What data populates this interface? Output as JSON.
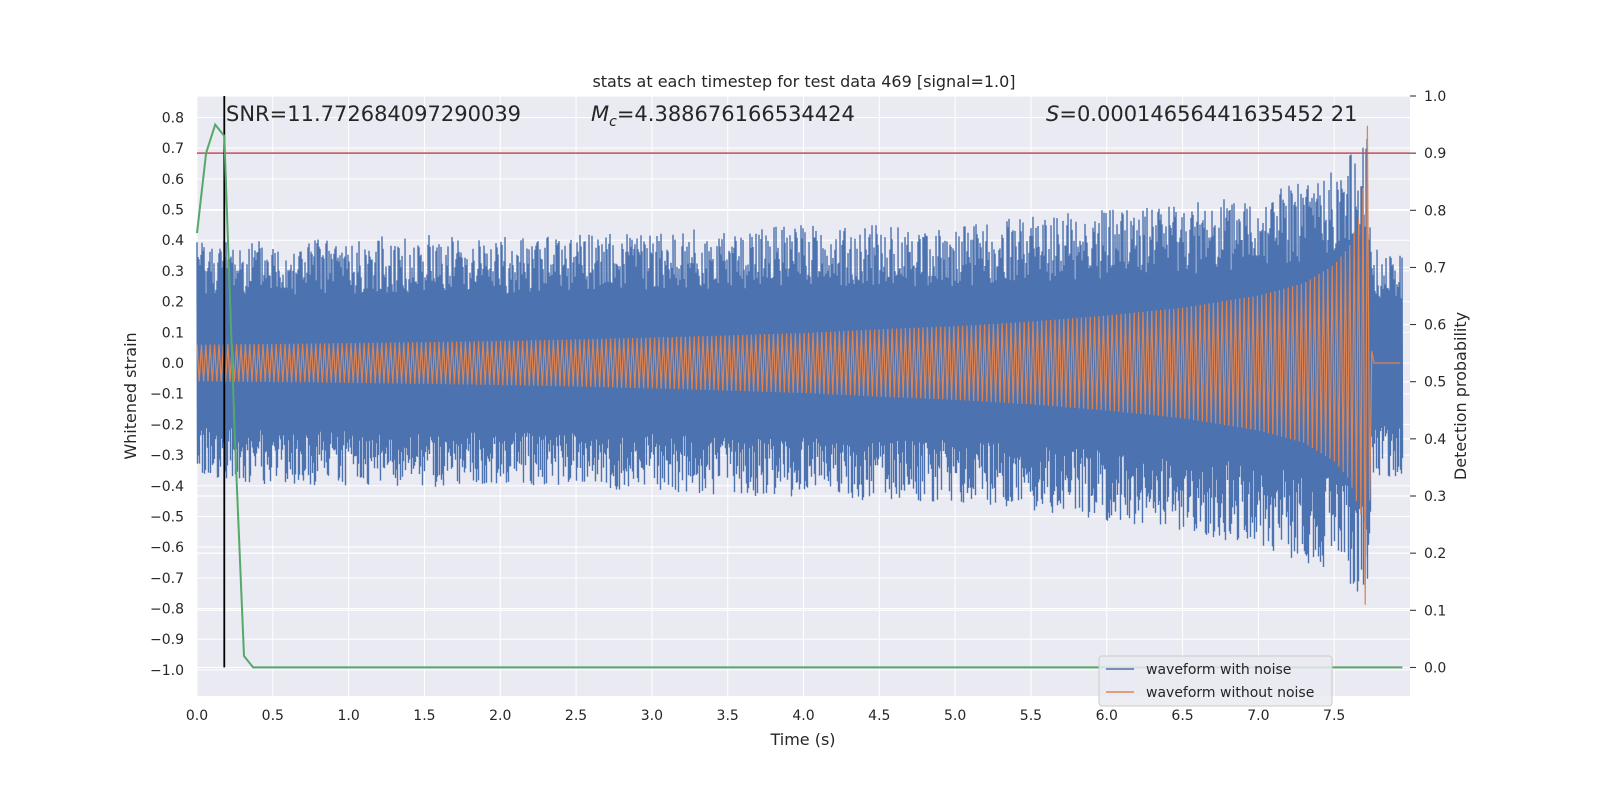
{
  "chart_data": {
    "type": "line",
    "title": "stats at each timestep for test data 469 [signal=1.0]",
    "xlabel": "Time (s)",
    "ylabel": "Whitened strain",
    "ylabel_right": "Detection probability",
    "xlim": [
      0.0,
      8.0
    ],
    "ylim": [
      -1.085,
      0.87
    ],
    "ylim_right": [
      -0.05,
      1.0
    ],
    "x_ticks": [
      "0.0",
      "0.5",
      "1.0",
      "1.5",
      "2.0",
      "2.5",
      "3.0",
      "3.5",
      "4.0",
      "4.5",
      "5.0",
      "5.5",
      "6.0",
      "6.5",
      "7.0",
      "7.5"
    ],
    "y_ticks": [
      "0.8",
      "0.7",
      "0.6",
      "0.5",
      "0.4",
      "0.3",
      "0.2",
      "0.1",
      "0.0",
      "−0.1",
      "−0.2",
      "−0.3",
      "−0.4",
      "−0.5",
      "−0.6",
      "−0.7",
      "−0.8",
      "−0.9",
      "−1.0"
    ],
    "y_ticks_right": [
      "1.0",
      "0.9",
      "0.8",
      "0.7",
      "0.6",
      "0.5",
      "0.4",
      "0.3",
      "0.2",
      "0.1",
      "0.0"
    ],
    "grid": true,
    "annotations": {
      "snr": "SNR=11.772684097290039",
      "mc_symbol": "M",
      "mc_sub": "c",
      "mc_value": "=4.388676166534424",
      "s_symbol": "S",
      "s_value": "=0.00014656441635452 21"
    },
    "threshold_right": 0.9,
    "threshold_color": "#c44e52",
    "detection_time": 0.18,
    "detection_line_color": "#000000",
    "series": [
      {
        "name": "waveform with noise",
        "color": "#4c72b0",
        "envelope": {
          "t": [
            0.0,
            0.5,
            1.0,
            1.5,
            2.0,
            2.5,
            3.0,
            3.5,
            4.0,
            4.5,
            5.0,
            5.5,
            6.0,
            6.5,
            7.0,
            7.3,
            7.5,
            7.6,
            7.68,
            7.72,
            7.74,
            7.75,
            8.0
          ],
          "upper": [
            0.41,
            0.4,
            0.41,
            0.42,
            0.41,
            0.42,
            0.43,
            0.44,
            0.45,
            0.45,
            0.45,
            0.48,
            0.5,
            0.52,
            0.55,
            0.6,
            0.63,
            0.68,
            0.73,
            0.78,
            0.4,
            0.37,
            0.37
          ],
          "lower": [
            -0.37,
            -0.4,
            -0.4,
            -0.41,
            -0.4,
            -0.41,
            -0.42,
            -0.43,
            -0.44,
            -0.45,
            -0.46,
            -0.48,
            -0.52,
            -0.55,
            -0.6,
            -0.65,
            -0.68,
            -0.72,
            -0.78,
            -0.99,
            -0.4,
            -0.37,
            -0.37
          ]
        }
      },
      {
        "name": "waveform without noise",
        "color": "#dd8452",
        "envelope": {
          "t": [
            0.0,
            0.5,
            1.0,
            1.5,
            2.0,
            2.5,
            3.0,
            3.5,
            4.0,
            4.5,
            5.0,
            5.5,
            6.0,
            6.5,
            7.0,
            7.3,
            7.5,
            7.6,
            7.68,
            7.72,
            7.74,
            7.75,
            8.0
          ],
          "upper": [
            0.06,
            0.062,
            0.065,
            0.068,
            0.072,
            0.077,
            0.083,
            0.09,
            0.098,
            0.11,
            0.12,
            0.135,
            0.155,
            0.18,
            0.22,
            0.26,
            0.32,
            0.38,
            0.5,
            0.78,
            0.2,
            0.0,
            0.0
          ],
          "lower": [
            -0.06,
            -0.062,
            -0.065,
            -0.068,
            -0.072,
            -0.077,
            -0.083,
            -0.09,
            -0.098,
            -0.11,
            -0.12,
            -0.135,
            -0.155,
            -0.18,
            -0.22,
            -0.26,
            -0.32,
            -0.38,
            -0.5,
            -0.97,
            -0.2,
            0.0,
            0.0
          ]
        }
      },
      {
        "name": "",
        "color": "#55a868",
        "axis": "right",
        "x": [
          0.0,
          0.06,
          0.12,
          0.18,
          0.25,
          0.31,
          0.37,
          7.95
        ],
        "y": [
          0.76,
          0.9,
          0.95,
          0.93,
          0.4,
          0.02,
          0.0,
          0.0
        ]
      }
    ]
  }
}
